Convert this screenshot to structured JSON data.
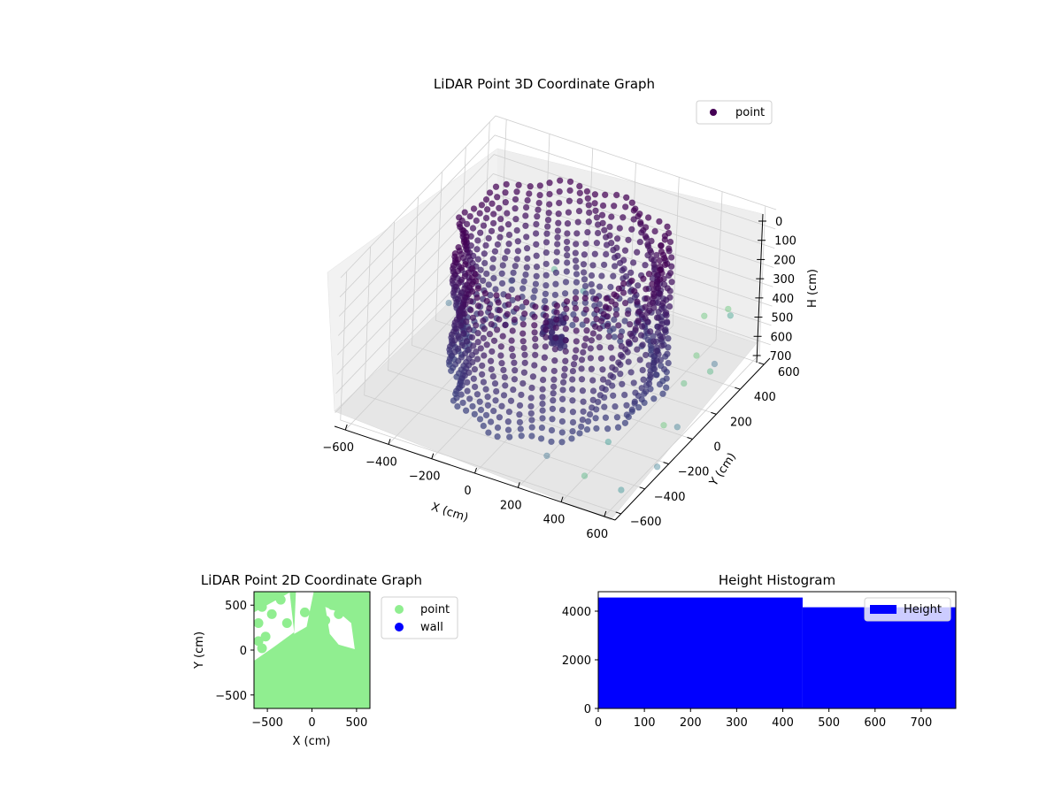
{
  "chart_data": [
    {
      "type": "scatter",
      "dimensions": 3,
      "title": "LiDAR Point 3D Coordinate Graph",
      "xlabel": "X (cm)",
      "ylabel": "Y (cm)",
      "zlabel": "H (cm)",
      "xlim": [
        -650,
        650
      ],
      "ylim": [
        -650,
        650
      ],
      "zlim": [
        0,
        770
      ],
      "z_inverted": true,
      "x_ticks": [
        -600,
        -400,
        -200,
        0,
        200,
        400,
        600
      ],
      "y_ticks": [
        -600,
        -400,
        -200,
        0,
        200,
        400,
        600
      ],
      "z_ticks": [
        0,
        100,
        200,
        300,
        400,
        500,
        600,
        700
      ],
      "x_tick_labels": [
        "−600",
        "−400",
        "−200",
        "0",
        "200",
        "400",
        "600"
      ],
      "y_tick_labels": [
        "−600",
        "−400",
        "−200",
        "0",
        "200",
        "400",
        "600"
      ],
      "z_tick_labels": [
        "0",
        "100",
        "200",
        "300",
        "400",
        "500",
        "600",
        "700"
      ],
      "grid": true,
      "legend_position": "upper-right",
      "colormap": "viridis",
      "series": [
        {
          "name": "point",
          "legend_color": "#440154",
          "shape": "ring",
          "ring_radius": 420,
          "ring_height": [
            0,
            700
          ],
          "columns": 64,
          "samples_per_column": 16,
          "noise_points": [
            {
              "x": 600,
              "y": 0,
              "h": 500
            },
            {
              "x": 630,
              "y": -100,
              "h": 650
            },
            {
              "x": 580,
              "y": 300,
              "h": 600
            },
            {
              "x": 500,
              "y": -450,
              "h": 550
            },
            {
              "x": 650,
              "y": -300,
              "h": 720
            },
            {
              "x": 620,
              "y": -550,
              "h": 690
            },
            {
              "x": -620,
              "y": 250,
              "h": 700
            },
            {
              "x": -500,
              "y": 560,
              "h": 740
            },
            {
              "x": 580,
              "y": 400,
              "h": 380
            },
            {
              "x": 550,
              "y": 250,
              "h": 330
            },
            {
              "x": 600,
              "y": 100,
              "h": 420
            },
            {
              "x": 300,
              "y": -600,
              "h": 600
            },
            {
              "x": -300,
              "y": 550,
              "h": 600
            },
            {
              "x": -200,
              "y": 620,
              "h": 720
            },
            {
              "x": 450,
              "y": -550,
              "h": 680
            },
            {
              "x": 620,
              "y": -200,
              "h": 580
            },
            {
              "x": 640,
              "y": 150,
              "h": 520
            },
            {
              "x": 560,
              "y": 460,
              "h": 460
            }
          ],
          "center_cluster": {
            "x": -20,
            "y": 40,
            "h": [
              440,
              560
            ],
            "count": 40
          }
        }
      ]
    },
    {
      "type": "scatter",
      "title": "LiDAR Point 2D Coordinate Graph",
      "xlabel": "X (cm)",
      "ylabel": "Y (cm)",
      "xlim": [
        -650,
        650
      ],
      "ylim": [
        -650,
        650
      ],
      "x_ticks": [
        -500,
        0,
        500
      ],
      "y_ticks": [
        -500,
        0,
        500
      ],
      "x_tick_labels": [
        "−500",
        "0",
        "500"
      ],
      "y_tick_labels": [
        "−500",
        "0",
        "500"
      ],
      "legend_position": "outside-right",
      "series": [
        {
          "name": "point",
          "color": "#90ee90"
        },
        {
          "name": "wall",
          "color": "#0000ff"
        }
      ]
    },
    {
      "type": "bar",
      "title": "Height Histogram",
      "xlim": [
        0,
        775
      ],
      "ylim": [
        0,
        4800
      ],
      "x_ticks": [
        0,
        100,
        200,
        300,
        400,
        500,
        600,
        700
      ],
      "y_ticks": [
        0,
        2000,
        4000
      ],
      "x_tick_labels": [
        "0",
        "100",
        "200",
        "300",
        "400",
        "500",
        "600",
        "700"
      ],
      "y_tick_labels": [
        "0",
        "2000",
        "4000"
      ],
      "legend_position": "upper-right",
      "series": [
        {
          "name": "Height",
          "color": "#0000ff",
          "bins": [
            {
              "x0": 0,
              "x1": 443,
              "value": 4560
            },
            {
              "x0": 443,
              "x1": 775,
              "value": 4160
            }
          ]
        }
      ]
    }
  ]
}
